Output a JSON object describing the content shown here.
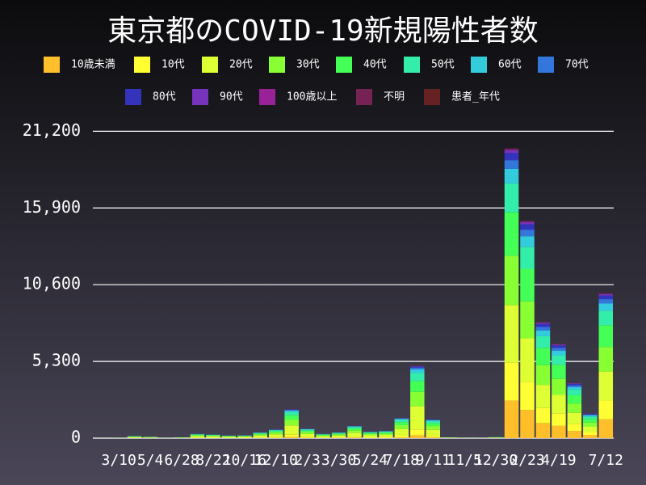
{
  "chart_data": {
    "type": "stacked_bar",
    "title": "東京都のCOVID-19新規陽性者数",
    "categories": [
      null,
      "3/10",
      null,
      "5/4",
      null,
      "6/28",
      null,
      "8/22",
      null,
      "10/16",
      null,
      "12/10",
      null,
      "2/3",
      null,
      "3/30",
      null,
      "5/24",
      null,
      "7/18",
      null,
      "9/11",
      null,
      "11/5",
      null,
      "12/30",
      null,
      "2/23",
      null,
      "4/19",
      null,
      null,
      "7/12"
    ],
    "ylim": [
      0,
      21500
    ],
    "yticks": [
      0,
      {
        "value": 5300,
        "label": "5,300"
      },
      {
        "value": 10600,
        "label": "10,600"
      },
      {
        "value": 15900,
        "label": "15,900"
      },
      {
        "value": 21200,
        "label": "21,200"
      }
    ],
    "grid": true,
    "series": [
      {
        "name": "10歳未満",
        "color": "#ffbf2b",
        "values": [
          0,
          1,
          6,
          4,
          1,
          2,
          12,
          10,
          7,
          8,
          16,
          24,
          80,
          26,
          12,
          16,
          34,
          18,
          20,
          56,
          200,
          52,
          2,
          1,
          1,
          3,
          2600,
          1950,
          1040,
          845,
          494,
          221,
          1300
        ]
      },
      {
        "name": "10代",
        "color": "#ffff33",
        "values": [
          0,
          2,
          12,
          8,
          2,
          5,
          24,
          20,
          14,
          16,
          32,
          48,
          160,
          52,
          24,
          32,
          68,
          36,
          40,
          112,
          400,
          104,
          5,
          2,
          2,
          6,
          2600,
          1950,
          1040,
          845,
          494,
          221,
          1300
        ]
      },
      {
        "name": "20代",
        "color": "#ddff33",
        "values": [
          2,
          6,
          48,
          32,
          6,
          19,
          96,
          80,
          58,
          64,
          128,
          192,
          640,
          208,
          96,
          128,
          272,
          144,
          160,
          448,
          1600,
          416,
          19,
          8,
          6,
          22,
          4000,
          3000,
          1600,
          1300,
          760,
          340,
          2000
        ]
      },
      {
        "name": "30代",
        "color": "#88ff33",
        "values": [
          1,
          4,
          30,
          20,
          4,
          12,
          60,
          50,
          36,
          40,
          80,
          120,
          400,
          130,
          60,
          80,
          170,
          90,
          100,
          280,
          1000,
          260,
          12,
          5,
          4,
          14,
          3400,
          2550,
          1360,
          1105,
          646,
          289,
          1700
        ]
      },
      {
        "name": "40代",
        "color": "#44ff55",
        "values": [
          1,
          3,
          22,
          15,
          3,
          9,
          45,
          38,
          27,
          30,
          60,
          90,
          300,
          98,
          45,
          60,
          128,
          68,
          75,
          210,
          750,
          195,
          9,
          4,
          3,
          11,
          3000,
          2250,
          1200,
          975,
          570,
          255,
          1500
        ]
      },
      {
        "name": "50代",
        "color": "#33eeaa",
        "values": [
          1,
          2,
          17,
          11,
          2,
          7,
          33,
          28,
          20,
          22,
          44,
          66,
          220,
          72,
          33,
          44,
          94,
          50,
          55,
          154,
          550,
          143,
          7,
          3,
          2,
          8,
          2000,
          1500,
          800,
          650,
          380,
          170,
          1000
        ]
      },
      {
        "name": "60代",
        "color": "#33ccdd",
        "values": [
          0,
          1,
          8,
          5,
          1,
          3,
          15,
          12,
          9,
          10,
          20,
          30,
          100,
          32,
          15,
          20,
          42,
          22,
          25,
          70,
          250,
          65,
          3,
          1,
          1,
          3,
          1000,
          750,
          400,
          325,
          190,
          85,
          500
        ]
      },
      {
        "name": "70代",
        "color": "#3377dd",
        "values": [
          0,
          0,
          4,
          2,
          0,
          2,
          8,
          6,
          4,
          5,
          10,
          15,
          50,
          16,
          8,
          10,
          21,
          11,
          12,
          35,
          125,
          32,
          2,
          1,
          0,
          2,
          600,
          450,
          240,
          195,
          114,
          51,
          300
        ]
      },
      {
        "name": "80代",
        "color": "#3333bb",
        "values": [
          0,
          1,
          2,
          2,
          1,
          1,
          5,
          4,
          3,
          3,
          6,
          9,
          30,
          10,
          4,
          6,
          13,
          7,
          8,
          21,
          75,
          20,
          1,
          0,
          1,
          1,
          500,
          375,
          200,
          162,
          95,
          42,
          250
        ]
      },
      {
        "name": "90代",
        "color": "#7733bb",
        "values": [
          0,
          0,
          1,
          1,
          0,
          0,
          2,
          1,
          1,
          1,
          2,
          3,
          10,
          3,
          2,
          2,
          4,
          2,
          2,
          7,
          25,
          6,
          0,
          0,
          0,
          0,
          200,
          150,
          80,
          65,
          38,
          17,
          100
        ]
      },
      {
        "name": "100歳以上",
        "color": "#992299",
        "values": [
          0,
          0,
          0,
          0,
          0,
          0,
          0,
          0,
          0,
          0,
          0,
          0,
          1,
          0,
          0,
          0,
          0,
          0,
          0,
          0,
          1,
          0,
          0,
          0,
          0,
          0,
          10,
          8,
          4,
          3,
          2,
          1,
          5
        ]
      },
      {
        "name": "不明",
        "color": "#772255",
        "values": [
          0,
          0,
          0,
          0,
          0,
          0,
          2,
          1,
          1,
          1,
          2,
          3,
          10,
          3,
          1,
          2,
          4,
          2,
          3,
          7,
          25,
          7,
          0,
          0,
          0,
          0,
          100,
          75,
          40,
          32,
          19,
          8,
          50
        ]
      },
      {
        "name": "患者_年代",
        "color": "#662222",
        "values": [
          0,
          0,
          0,
          0,
          0,
          0,
          0,
          0,
          0,
          0,
          0,
          0,
          0,
          0,
          0,
          0,
          0,
          0,
          0,
          0,
          0,
          0,
          0,
          0,
          0,
          0,
          0,
          0,
          0,
          0,
          0,
          0,
          0
        ]
      }
    ]
  }
}
